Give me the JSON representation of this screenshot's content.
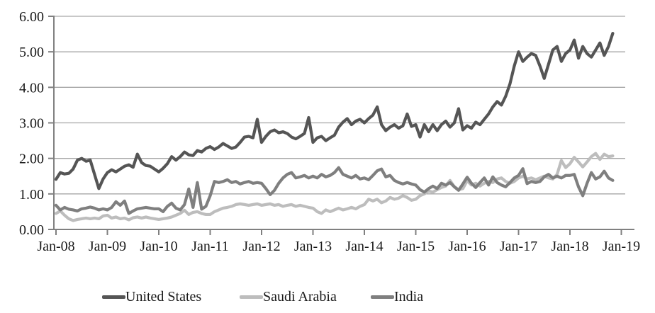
{
  "chart_data": {
    "type": "line",
    "title": "",
    "xlabel": "",
    "ylabel": "",
    "ylim": [
      0,
      6
    ],
    "ytick_step": 1,
    "ytick_labels": [
      "0.00",
      "1.00",
      "2.00",
      "3.00",
      "4.00",
      "5.00",
      "6.00"
    ],
    "xtick_labels": [
      "Jan-08",
      "Jan-09",
      "Jan-10",
      "Jan-11",
      "Jan-12",
      "Jan-13",
      "Jan-14",
      "Jan-15",
      "Jan-16",
      "Jan-17",
      "Jan-18",
      "Jan-19"
    ],
    "x_start_month": "Jan-2008",
    "x_end_month": "Nov-2018",
    "grid": true,
    "legend_position": "bottom",
    "axis_color": "#808080",
    "gridline_color": "#a6a6a6",
    "text_color": "#1a1a1a",
    "series": [
      {
        "name": "United States",
        "color": "#555555",
        "values": [
          1.41,
          1.6,
          1.56,
          1.58,
          1.7,
          1.95,
          2.0,
          1.92,
          1.95,
          1.55,
          1.15,
          1.42,
          1.6,
          1.68,
          1.62,
          1.7,
          1.78,
          1.82,
          1.75,
          2.12,
          1.88,
          1.8,
          1.78,
          1.7,
          1.62,
          1.72,
          1.85,
          2.05,
          1.95,
          2.05,
          2.18,
          2.1,
          2.08,
          2.22,
          2.18,
          2.28,
          2.33,
          2.25,
          2.32,
          2.42,
          2.35,
          2.28,
          2.32,
          2.45,
          2.6,
          2.62,
          2.58,
          3.1,
          2.45,
          2.62,
          2.75,
          2.8,
          2.72,
          2.75,
          2.7,
          2.6,
          2.55,
          2.62,
          2.7,
          3.15,
          2.45,
          2.58,
          2.62,
          2.5,
          2.58,
          2.65,
          2.88,
          3.02,
          3.12,
          2.95,
          3.05,
          3.1,
          3.0,
          3.12,
          3.22,
          3.45,
          2.95,
          2.78,
          2.88,
          2.95,
          2.85,
          2.92,
          3.25,
          2.9,
          2.95,
          2.6,
          2.95,
          2.75,
          2.95,
          2.78,
          2.95,
          3.05,
          2.88,
          3.0,
          3.4,
          2.8,
          2.92,
          2.85,
          3.02,
          2.95,
          3.1,
          3.25,
          3.45,
          3.6,
          3.5,
          3.75,
          4.1,
          4.6,
          5.0,
          4.73,
          4.85,
          4.95,
          4.9,
          4.6,
          4.25,
          4.65,
          5.05,
          5.15,
          4.73,
          4.95,
          5.05,
          5.33,
          4.82,
          5.15,
          4.95,
          4.85,
          5.05,
          5.25,
          4.9,
          5.15,
          5.52
        ]
      },
      {
        "name": "Saudi Arabia",
        "color": "#bdbdbd",
        "values": [
          0.45,
          0.52,
          0.4,
          0.3,
          0.25,
          0.28,
          0.3,
          0.32,
          0.3,
          0.32,
          0.3,
          0.38,
          0.4,
          0.32,
          0.35,
          0.3,
          0.32,
          0.27,
          0.33,
          0.35,
          0.32,
          0.35,
          0.32,
          0.3,
          0.28,
          0.3,
          0.32,
          0.35,
          0.4,
          0.45,
          0.54,
          0.42,
          0.48,
          0.5,
          0.45,
          0.42,
          0.42,
          0.5,
          0.55,
          0.6,
          0.62,
          0.65,
          0.7,
          0.72,
          0.7,
          0.68,
          0.7,
          0.72,
          0.68,
          0.7,
          0.72,
          0.68,
          0.7,
          0.65,
          0.68,
          0.7,
          0.65,
          0.68,
          0.65,
          0.62,
          0.6,
          0.5,
          0.45,
          0.55,
          0.5,
          0.55,
          0.6,
          0.55,
          0.58,
          0.62,
          0.58,
          0.65,
          0.7,
          0.85,
          0.8,
          0.85,
          0.75,
          0.8,
          0.9,
          0.85,
          0.88,
          0.95,
          0.9,
          0.82,
          0.85,
          0.95,
          1.0,
          1.08,
          1.05,
          1.12,
          1.18,
          1.22,
          1.38,
          1.2,
          1.12,
          1.15,
          1.37,
          1.25,
          1.3,
          1.22,
          1.3,
          1.35,
          1.32,
          1.42,
          1.45,
          1.35,
          1.3,
          1.35,
          1.45,
          1.5,
          1.42,
          1.45,
          1.4,
          1.45,
          1.5,
          1.45,
          1.42,
          1.55,
          1.94,
          1.74,
          1.85,
          2.03,
          1.9,
          1.76,
          1.9,
          2.05,
          2.14,
          1.97,
          2.12,
          2.05,
          2.07
        ]
      },
      {
        "name": "India",
        "color": "#7f7f7f",
        "values": [
          0.68,
          0.55,
          0.62,
          0.57,
          0.55,
          0.52,
          0.58,
          0.6,
          0.63,
          0.6,
          0.55,
          0.58,
          0.55,
          0.62,
          0.78,
          0.68,
          0.8,
          0.45,
          0.52,
          0.58,
          0.6,
          0.62,
          0.6,
          0.58,
          0.58,
          0.5,
          0.65,
          0.74,
          0.6,
          0.55,
          0.7,
          1.14,
          0.62,
          1.32,
          0.57,
          0.65,
          0.95,
          1.35,
          1.32,
          1.35,
          1.4,
          1.32,
          1.35,
          1.28,
          1.32,
          1.35,
          1.3,
          1.32,
          1.3,
          1.15,
          0.98,
          1.1,
          1.3,
          1.45,
          1.55,
          1.6,
          1.45,
          1.48,
          1.52,
          1.45,
          1.5,
          1.45,
          1.55,
          1.48,
          1.52,
          1.6,
          1.74,
          1.55,
          1.5,
          1.45,
          1.52,
          1.42,
          1.45,
          1.4,
          1.52,
          1.65,
          1.7,
          1.48,
          1.52,
          1.38,
          1.32,
          1.28,
          1.32,
          1.28,
          1.25,
          1.12,
          1.05,
          1.15,
          1.22,
          1.15,
          1.3,
          1.25,
          1.32,
          1.2,
          1.1,
          1.28,
          1.47,
          1.3,
          1.18,
          1.32,
          1.45,
          1.25,
          1.48,
          1.32,
          1.25,
          1.2,
          1.32,
          1.45,
          1.52,
          1.71,
          1.29,
          1.35,
          1.32,
          1.35,
          1.48,
          1.55,
          1.45,
          1.5,
          1.45,
          1.52,
          1.52,
          1.55,
          1.2,
          0.95,
          1.3,
          1.6,
          1.42,
          1.48,
          1.64,
          1.45,
          1.38
        ]
      }
    ]
  }
}
